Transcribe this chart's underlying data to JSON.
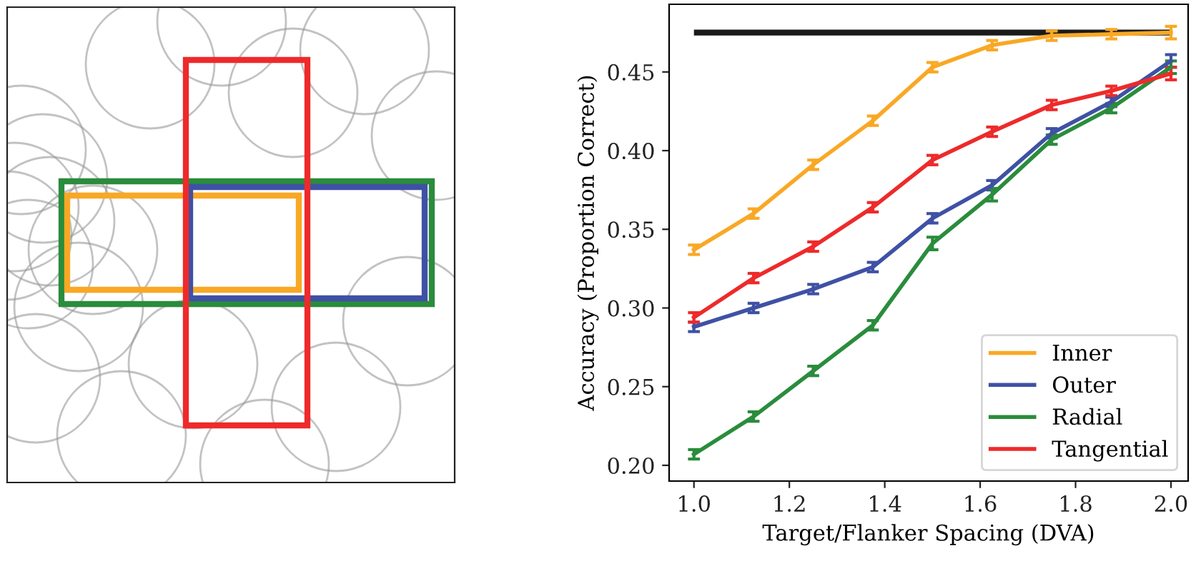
{
  "chart_data": {
    "type": "line",
    "xlabel": "Target/Flanker Spacing (DVA)",
    "ylabel": "Accuracy (Proportion Correct)",
    "x": [
      1.0,
      1.125,
      1.25,
      1.375,
      1.5,
      1.625,
      1.75,
      1.875,
      2.0
    ],
    "series": [
      {
        "name": "Inner",
        "color": "#f9a825",
        "values": [
          0.337,
          0.36,
          0.391,
          0.419,
          0.453,
          0.467,
          0.473,
          0.474,
          0.475
        ],
        "errors": [
          0.003,
          0.003,
          0.003,
          0.003,
          0.003,
          0.003,
          0.003,
          0.003,
          0.004
        ]
      },
      {
        "name": "Outer",
        "color": "#3f51a5",
        "values": [
          0.288,
          0.3,
          0.312,
          0.326,
          0.357,
          0.378,
          0.411,
          0.431,
          0.457
        ],
        "errors": [
          0.003,
          0.003,
          0.003,
          0.003,
          0.003,
          0.003,
          0.003,
          0.003,
          0.004
        ]
      },
      {
        "name": "Radial",
        "color": "#2a8c3c",
        "values": [
          0.207,
          0.231,
          0.26,
          0.289,
          0.341,
          0.372,
          0.407,
          0.427,
          0.453
        ],
        "errors": [
          0.003,
          0.003,
          0.003,
          0.003,
          0.004,
          0.004,
          0.003,
          0.003,
          0.004
        ]
      },
      {
        "name": "Tangential",
        "color": "#ee2a2a",
        "values": [
          0.294,
          0.319,
          0.339,
          0.364,
          0.394,
          0.412,
          0.429,
          0.438,
          0.449
        ],
        "errors": [
          0.003,
          0.003,
          0.003,
          0.003,
          0.003,
          0.003,
          0.003,
          0.003,
          0.004
        ]
      }
    ],
    "ref_lines": [
      {
        "axis": "y",
        "value": 0.475,
        "color": "#1a1a1a"
      }
    ],
    "xlim": [
      0.948,
      2.036
    ],
    "ylim": [
      0.19,
      0.493
    ],
    "xticks": [
      {
        "value": 1.0,
        "label": "1.0"
      },
      {
        "value": 1.2,
        "label": "1.2"
      },
      {
        "value": 1.4,
        "label": "1.4"
      },
      {
        "value": 1.6,
        "label": "1.6"
      },
      {
        "value": 1.8,
        "label": "1.8"
      },
      {
        "value": 2.0,
        "label": "2.0"
      }
    ],
    "yticks": [
      {
        "value": 0.2,
        "label": "0.20"
      },
      {
        "value": 0.25,
        "label": "0.25"
      },
      {
        "value": 0.3,
        "label": "0.30"
      },
      {
        "value": 0.35,
        "label": "0.35"
      },
      {
        "value": 0.4,
        "label": "0.40"
      },
      {
        "value": 0.45,
        "label": "0.45"
      }
    ],
    "grid": false,
    "legend": "bottom right",
    "marker": "none",
    "line_style": "solid"
  }
}
